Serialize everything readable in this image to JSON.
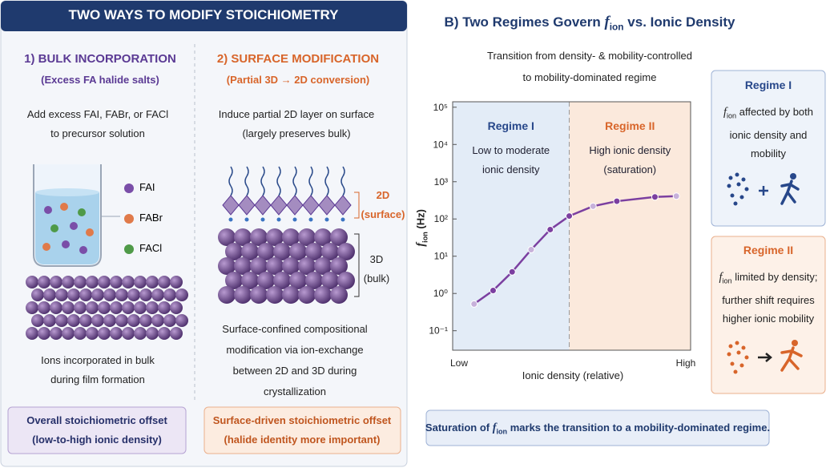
{
  "panel_a": {
    "header": "TWO WAYS TO MODIFY STOICHIOMETRY",
    "bulk": {
      "title": "1) BULK INCORPORATION",
      "subtitle": "(Excess FA halide salts)",
      "instruction": [
        "Add excess FAI, FABr, or FACl",
        "to precursor solution"
      ],
      "legend": [
        {
          "name": "FAI",
          "color": "#7a4ea8"
        },
        {
          "name": "FABr",
          "color": "#e07a4a"
        },
        {
          "name": "FACl",
          "color": "#4f9a48"
        }
      ],
      "caption": [
        "Ions incorporated in bulk",
        "during film formation"
      ],
      "result": [
        "Overall stoichiometric offset",
        "(low-to-high ionic density)"
      ]
    },
    "surface": {
      "title": "2) SURFACE MODIFICATION",
      "subtitle": "(Partial 3D → 2D conversion)",
      "instruction": [
        "Induce partial 2D layer on surface",
        "(largely preserves bulk)"
      ],
      "layer_2d": [
        "2D",
        "(surface)"
      ],
      "layer_3d": [
        "3D",
        "(bulk)"
      ],
      "caption": [
        "Surface-confined compositional",
        "modification via ion-exchange",
        "between 2D and 3D during",
        "crystallization"
      ],
      "result": [
        "Surface-driven stoichiometric offset",
        "(halide identity more important)"
      ]
    }
  },
  "chart_data": {
    "type": "line",
    "title": {
      "pre": "B) Two Regimes Govern ",
      "sym": "f",
      "sub": "ion",
      "post": " vs. Ionic Density"
    },
    "subtitle": [
      "Transition from density- & mobility-controlled",
      "to mobility-dominated regime"
    ],
    "ylabel": {
      "sym": "f",
      "sub": "ion",
      "post": " (Hz)"
    },
    "xlabel": "Ionic density (relative)",
    "log_y": true,
    "xlim": [
      0,
      1
    ],
    "xticks": [
      {
        "value": 0,
        "label": "Low"
      },
      {
        "value": 1,
        "label": "High"
      }
    ],
    "ylim": [
      0.03,
      140000
    ],
    "yticks": [
      {
        "value": 0.1,
        "label": "10⁻¹"
      },
      {
        "value": 1,
        "label": "10⁰"
      },
      {
        "value": 10,
        "label": "10¹"
      },
      {
        "value": 100,
        "label": "10²"
      },
      {
        "value": 1000,
        "label": "10³"
      },
      {
        "value": 10000,
        "label": "10⁴"
      },
      {
        "value": 100000,
        "label": "10⁵"
      }
    ],
    "boundary": 0.49,
    "regions": [
      {
        "name": "Regime I",
        "text": [
          "Low to moderate",
          "ionic density"
        ],
        "color": "#e3ecf7",
        "name_color": "#27478a"
      },
      {
        "name": "Regime II",
        "text": [
          "High ionic density",
          "(saturation)"
        ],
        "color": "#fbe9dc",
        "name_color": "#d8652a"
      }
    ],
    "x": [
      0.09,
      0.17,
      0.25,
      0.33,
      0.41,
      0.49,
      0.59,
      0.69,
      0.85,
      0.94
    ],
    "series": [
      {
        "color": "#7b3fa0",
        "values": [
          0.52,
          1.2,
          3.8,
          15,
          52,
          120,
          220,
          300,
          390,
          410
        ]
      }
    ]
  },
  "side_boxes": [
    {
      "title": "Regime I",
      "lines": [
        {
          "sym": "f",
          "sub": "ion",
          "post": " affected by both"
        },
        "ionic density and",
        "mobility"
      ],
      "color": "#27478a",
      "bg": "#eef3fa"
    },
    {
      "title": "Regime II",
      "lines": [
        {
          "sym": "f",
          "sub": "ion",
          "post": " limited by density;"
        },
        "further shift requires",
        "higher ionic mobility"
      ],
      "color": "#d8652a",
      "bg": "#fdf1e8"
    }
  ],
  "footer": {
    "pre": "Saturation of ",
    "sym": "f",
    "sub": "ion",
    "post": " marks the transition to a mobility-dominated regime."
  }
}
